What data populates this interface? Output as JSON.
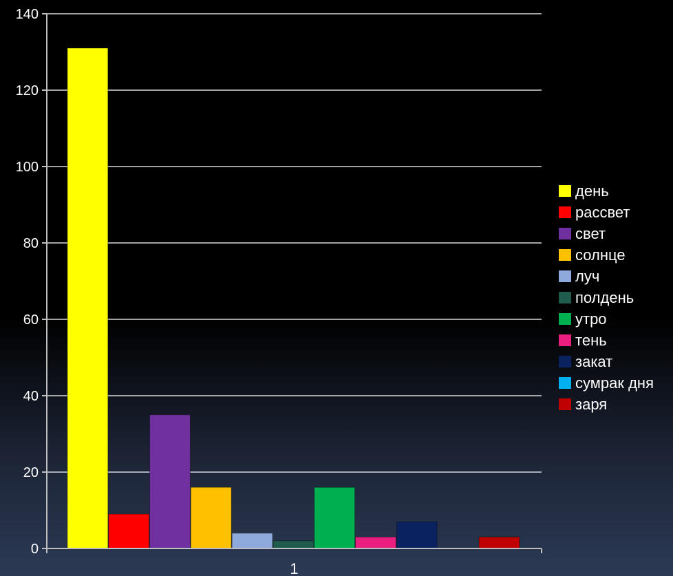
{
  "chart_data": {
    "type": "bar",
    "categories": [
      "1"
    ],
    "series": [
      {
        "name": "день",
        "values": [
          131
        ],
        "color": "#FFFF00"
      },
      {
        "name": "рассвет",
        "values": [
          9
        ],
        "color": "#FF0000"
      },
      {
        "name": "свет",
        "values": [
          35
        ],
        "color": "#7030A0"
      },
      {
        "name": "солнце",
        "values": [
          16
        ],
        "color": "#FFC000"
      },
      {
        "name": "луч",
        "values": [
          4
        ],
        "color": "#8EA9DB"
      },
      {
        "name": "полдень",
        "values": [
          2
        ],
        "color": "#1F5C4E"
      },
      {
        "name": "утро",
        "values": [
          16
        ],
        "color": "#00B050"
      },
      {
        "name": "тень",
        "values": [
          3
        ],
        "color": "#E91E7F"
      },
      {
        "name": "закат",
        "values": [
          7
        ],
        "color": "#0A2260"
      },
      {
        "name": "сумрак дня",
        "values": [
          0
        ],
        "color": "#00B0F0"
      },
      {
        "name": "заря",
        "values": [
          3
        ],
        "color": "#C00000"
      }
    ],
    "ylim": [
      0,
      140
    ],
    "yticks": [
      0,
      20,
      40,
      60,
      80,
      100,
      120,
      140
    ],
    "grid": true,
    "legend_position": "right"
  }
}
